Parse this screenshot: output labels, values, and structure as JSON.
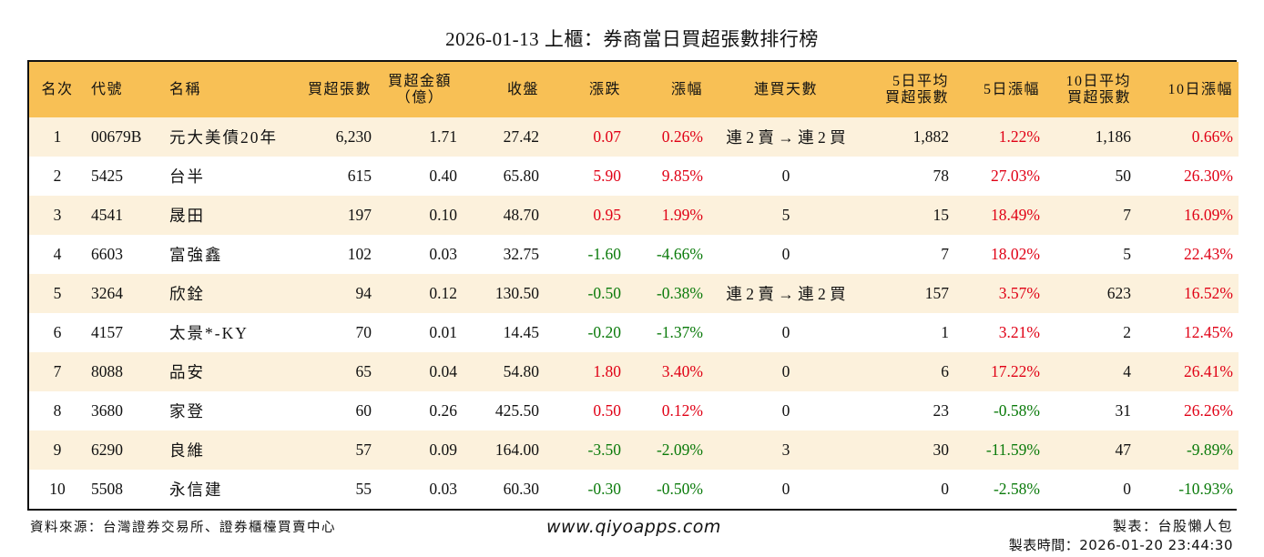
{
  "title": "2026-01-13 上櫃：券商當日買超張數排行榜",
  "colors": {
    "header_bg": "#F8C055",
    "row_alt_bg": "#FCF1DC",
    "up": "#E00015",
    "down": "#0A7A0A",
    "border": "#111111"
  },
  "table": {
    "columns": [
      {
        "key": "rank",
        "label": "名次"
      },
      {
        "key": "code",
        "label": "代號"
      },
      {
        "key": "name",
        "label": "名稱"
      },
      {
        "key": "net_buy",
        "label": "買超張數"
      },
      {
        "key": "amount",
        "label": "買超金額\n（億）"
      },
      {
        "key": "close",
        "label": "收盤"
      },
      {
        "key": "change",
        "label": "漲跌"
      },
      {
        "key": "pct",
        "label": "漲幅"
      },
      {
        "key": "streak",
        "label": "連買天數"
      },
      {
        "key": "avg5",
        "label": "5日平均\n買超張數"
      },
      {
        "key": "pct5",
        "label": "5日漲幅"
      },
      {
        "key": "avg10",
        "label": "10日平均\n買超張數"
      },
      {
        "key": "pct10",
        "label": "10日漲幅"
      }
    ],
    "rows": [
      {
        "rank": "1",
        "code": "00679B",
        "name": "元大美債20年",
        "net_buy": "6,230",
        "amount": "1.71",
        "close": "27.42",
        "change": "0.07",
        "pct": "0.26%",
        "streak": "連 2 賣 → 連 2 買",
        "avg5": "1,882",
        "pct5": "1.22%",
        "avg10": "1,186",
        "pct10": "0.66%"
      },
      {
        "rank": "2",
        "code": "5425",
        "name": "台半",
        "net_buy": "615",
        "amount": "0.40",
        "close": "65.80",
        "change": "5.90",
        "pct": "9.85%",
        "streak": "0",
        "avg5": "78",
        "pct5": "27.03%",
        "avg10": "50",
        "pct10": "26.30%"
      },
      {
        "rank": "3",
        "code": "4541",
        "name": "晟田",
        "net_buy": "197",
        "amount": "0.10",
        "close": "48.70",
        "change": "0.95",
        "pct": "1.99%",
        "streak": "5",
        "avg5": "15",
        "pct5": "18.49%",
        "avg10": "7",
        "pct10": "16.09%"
      },
      {
        "rank": "4",
        "code": "6603",
        "name": "富強鑫",
        "net_buy": "102",
        "amount": "0.03",
        "close": "32.75",
        "change": "-1.60",
        "pct": "-4.66%",
        "streak": "0",
        "avg5": "7",
        "pct5": "18.02%",
        "avg10": "5",
        "pct10": "22.43%"
      },
      {
        "rank": "5",
        "code": "3264",
        "name": "欣銓",
        "net_buy": "94",
        "amount": "0.12",
        "close": "130.50",
        "change": "-0.50",
        "pct": "-0.38%",
        "streak": "連 2 賣 → 連 2 買",
        "avg5": "157",
        "pct5": "3.57%",
        "avg10": "623",
        "pct10": "16.52%"
      },
      {
        "rank": "6",
        "code": "4157",
        "name": "太景*-KY",
        "net_buy": "70",
        "amount": "0.01",
        "close": "14.45",
        "change": "-0.20",
        "pct": "-1.37%",
        "streak": "0",
        "avg5": "1",
        "pct5": "3.21%",
        "avg10": "2",
        "pct10": "12.45%"
      },
      {
        "rank": "7",
        "code": "8088",
        "name": "品安",
        "net_buy": "65",
        "amount": "0.04",
        "close": "54.80",
        "change": "1.80",
        "pct": "3.40%",
        "streak": "0",
        "avg5": "6",
        "pct5": "17.22%",
        "avg10": "4",
        "pct10": "26.41%"
      },
      {
        "rank": "8",
        "code": "3680",
        "name": "家登",
        "net_buy": "60",
        "amount": "0.26",
        "close": "425.50",
        "change": "0.50",
        "pct": "0.12%",
        "streak": "0",
        "avg5": "23",
        "pct5": "-0.58%",
        "avg10": "31",
        "pct10": "26.26%"
      },
      {
        "rank": "9",
        "code": "6290",
        "name": "良維",
        "net_buy": "57",
        "amount": "0.09",
        "close": "164.00",
        "change": "-3.50",
        "pct": "-2.09%",
        "streak": "3",
        "avg5": "30",
        "pct5": "-11.59%",
        "avg10": "47",
        "pct10": "-9.89%"
      },
      {
        "rank": "10",
        "code": "5508",
        "name": "永信建",
        "net_buy": "55",
        "amount": "0.03",
        "close": "60.30",
        "change": "-0.30",
        "pct": "-0.50%",
        "streak": "0",
        "avg5": "0",
        "pct5": "-2.58%",
        "avg10": "0",
        "pct10": "-10.93%"
      }
    ]
  },
  "footer": {
    "source": "資料來源：台灣證券交易所、證券櫃檯買賣中心",
    "website": "www.qiyoapps.com",
    "author": "製表：台股懶人包",
    "timestamp": "製表時間：2026-01-20 23:44:30"
  }
}
